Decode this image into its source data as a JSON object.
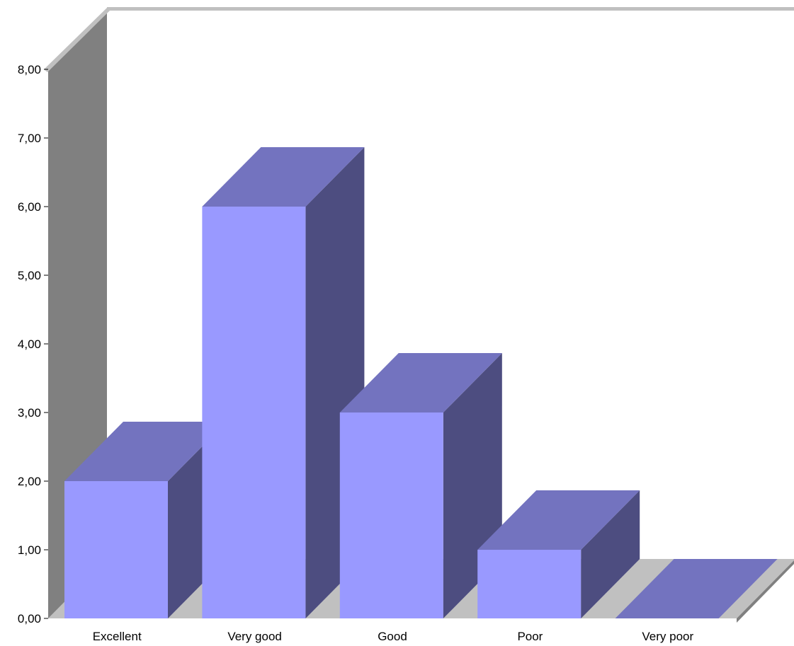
{
  "chart_data": {
    "type": "bar",
    "title": "",
    "xlabel": "",
    "ylabel": "",
    "categories": [
      "Excellent",
      "Very good",
      "Good",
      "Poor",
      "Very poor"
    ],
    "values": [
      2,
      6,
      3,
      1,
      0
    ],
    "ylim": [
      0,
      8
    ],
    "y_ticks": [
      "0,00",
      "1,00",
      "2,00",
      "3,00",
      "4,00",
      "5,00",
      "6,00",
      "7,00",
      "8,00"
    ],
    "grid": false,
    "legend": "none",
    "colors": {
      "bar_front": "#9999ff",
      "bar_top": "#7373bf",
      "bar_side": "#4d4d80",
      "back_wall": "#ffffff",
      "side_wall": "#808080",
      "floor": "#c0c0c0",
      "wall_edge": "#c0c0c0",
      "floor_edge": "#808080"
    }
  }
}
